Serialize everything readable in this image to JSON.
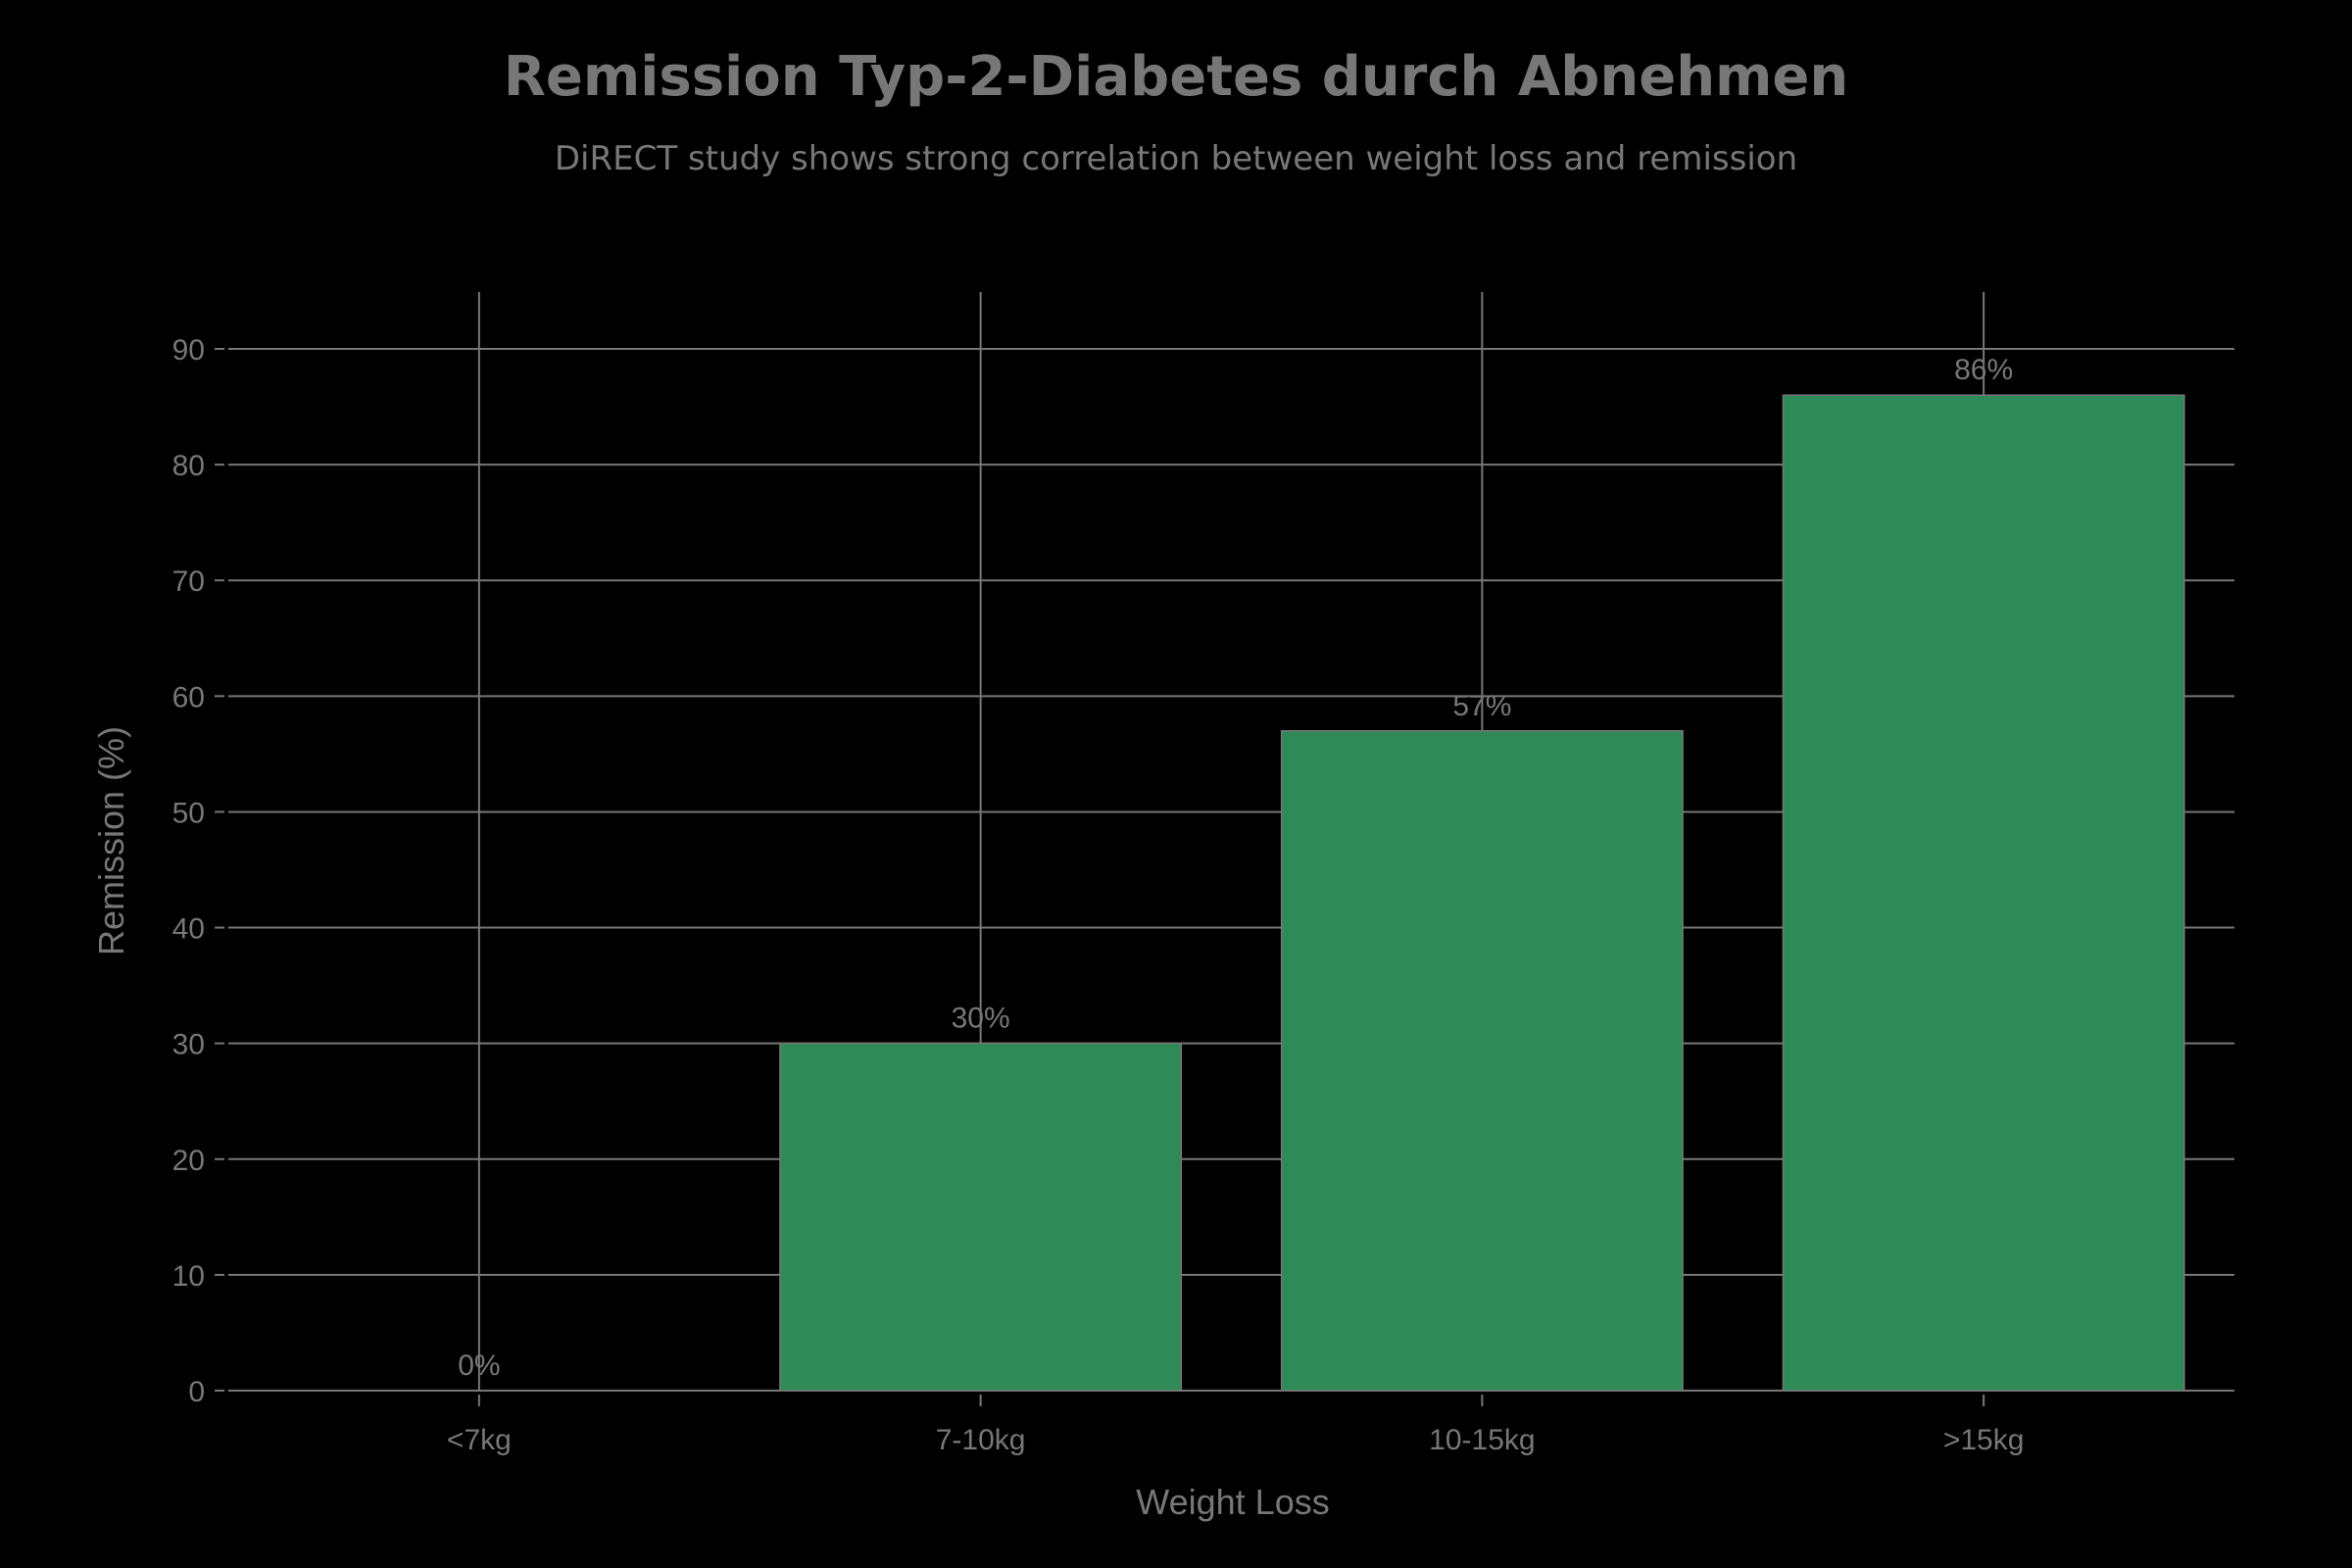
{
  "chart_data": {
    "type": "bar",
    "title": "Remission Typ-2-Diabetes durch Abnehmen",
    "subtitle": "DiRECT study shows strong correlation between weight loss and remission",
    "xlabel": "Weight Loss",
    "ylabel": "Remission (%)",
    "categories": [
      "<7kg",
      "7-10kg",
      "10-15kg",
      ">15kg"
    ],
    "values": [
      0,
      30,
      57,
      86
    ],
    "value_labels": [
      "0%",
      "30%",
      "57%",
      "86%"
    ],
    "ylim": [
      0,
      95
    ],
    "yticks": [
      0,
      10,
      20,
      30,
      40,
      50,
      60,
      70,
      80,
      90
    ],
    "grid": true,
    "legend": null,
    "colors": {
      "bar": "#2e8b57",
      "text": "#777777",
      "grid": "#777777",
      "background": "#000000"
    }
  }
}
